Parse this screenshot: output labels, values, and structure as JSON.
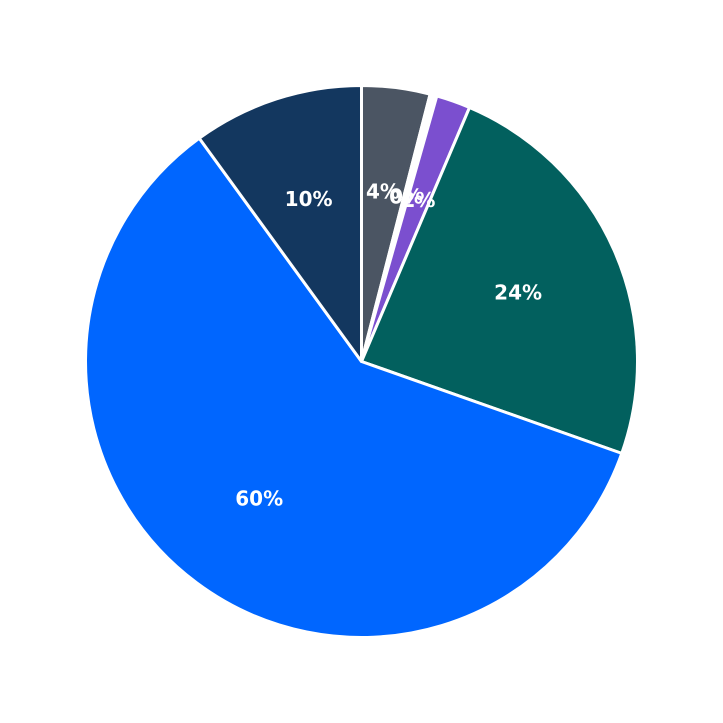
{
  "chart_data": {
    "type": "pie",
    "title": "",
    "start_angle_deg": 90,
    "direction": "clockwise",
    "slices": [
      {
        "label": "4%",
        "value": 4.0,
        "color": "#4b5563"
      },
      {
        "label": "0%",
        "value": 0.4,
        "color": "#ffffff"
      },
      {
        "label": "2%",
        "value": 2.0,
        "color": "#7b4fcf"
      },
      {
        "label": "24%",
        "value": 24.0,
        "color": "#02605e"
      },
      {
        "label": "60%",
        "value": 59.6,
        "color": "#0066ff"
      },
      {
        "label": "10%",
        "value": 10.0,
        "color": "#13375f"
      }
    ],
    "edge_color": "#ffffff"
  }
}
